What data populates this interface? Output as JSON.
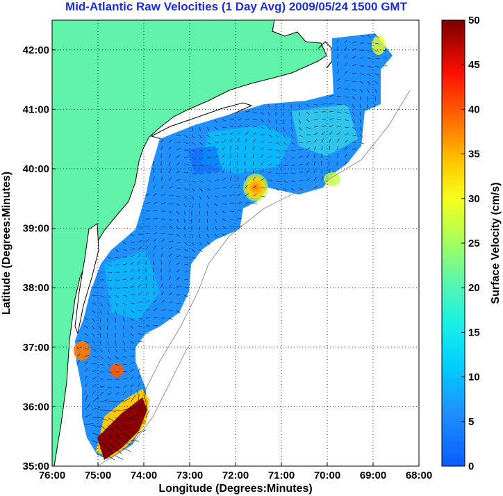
{
  "title": "Mid-Atlantic Raw Velocities (1 Day Avg) 2009/05/24 1500 GMT",
  "map": {
    "xlabel": "Longitude (Degrees:Minutes)",
    "ylabel": "Latitude (Degrees:Minutes)",
    "x_ticks": [
      "76:00",
      "75:00",
      "74:00",
      "73:00",
      "72:00",
      "71:00",
      "70:00",
      "69:00",
      "68:00"
    ],
    "y_ticks": [
      "42:00",
      "41:00",
      "40:00",
      "39:00",
      "38:00",
      "37:00",
      "36:00",
      "35:00"
    ],
    "lon_range": [
      -76,
      -68
    ],
    "lat_range": [
      35,
      42.5
    ],
    "land_color": "#5ff2a8",
    "grid": "dotted"
  },
  "colorbar": {
    "label": "Surface Velocity (cm/s)",
    "ticks": [
      "50",
      "45",
      "40",
      "35",
      "30",
      "25",
      "20",
      "15",
      "10",
      "5",
      "0"
    ],
    "range": [
      0,
      50
    ],
    "colormap": "jet"
  }
}
